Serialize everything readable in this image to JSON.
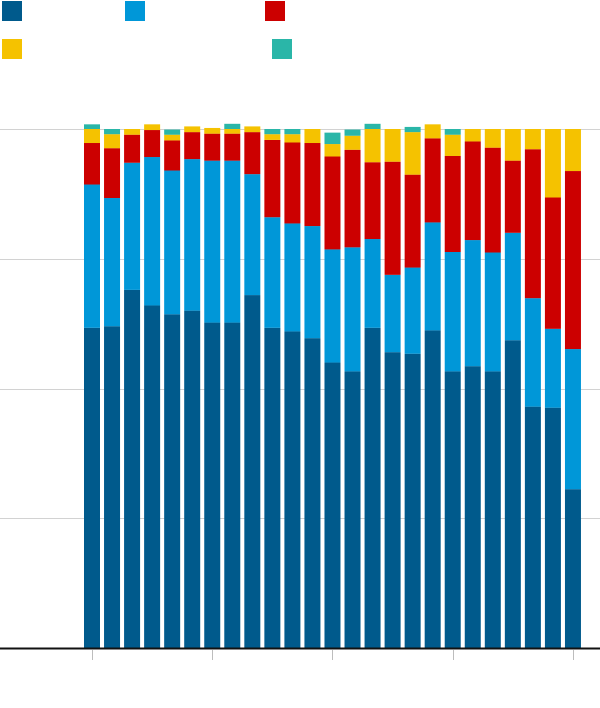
{
  "chart_data": {
    "type": "bar",
    "stacked": true,
    "normalized": true,
    "ylim": [
      0,
      100
    ],
    "y_gridlines": [
      25,
      50,
      75,
      100
    ],
    "x_tick_every": 6,
    "legend": {
      "placement": "top-left",
      "columns_row1": 3,
      "columns_row2": 2
    },
    "series": [
      {
        "color": "#005a8c",
        "values": [
          61.7,
          62,
          69,
          66,
          64.3,
          65,
          62.7,
          62.7,
          68,
          61.7,
          61,
          59.7,
          55,
          53.3,
          61.7,
          57,
          56.7,
          61.2,
          53.3,
          54.3,
          53.3,
          59.3,
          46.5,
          46.3,
          30.6
        ]
      },
      {
        "color": "#0097d8",
        "values": [
          27.6,
          24.7,
          24.5,
          28.6,
          27.7,
          29.2,
          31.2,
          31.2,
          23.3,
          21.3,
          20.8,
          21.6,
          21.8,
          23.9,
          17.1,
          14.9,
          16.6,
          20.8,
          23,
          24.3,
          22.9,
          20.7,
          20.9,
          15.2,
          27
        ]
      },
      {
        "color": "#cc0000",
        "values": [
          8,
          9.6,
          5.4,
          5.2,
          5.8,
          5.2,
          5.2,
          5.2,
          8.1,
          14.9,
          15.6,
          16,
          17.9,
          18.8,
          14.8,
          21.8,
          17.9,
          16.2,
          18.5,
          19,
          20.2,
          13.9,
          28.7,
          25.3,
          34.3
        ]
      },
      {
        "color": "#f5c200",
        "values": [
          2.7,
          2.7,
          1.1,
          1.1,
          1.1,
          1.1,
          1.1,
          0.9,
          1.1,
          1.1,
          1.6,
          2.7,
          2.4,
          2.7,
          6.4,
          6.3,
          8.2,
          2.7,
          4.1,
          2.4,
          3.6,
          6.1,
          3.9,
          13.2,
          8.1
        ]
      },
      {
        "color": "#2ab6a8",
        "values": [
          0.9,
          1,
          0,
          0,
          1,
          0,
          0,
          1,
          0,
          1,
          1,
          0,
          2.2,
          1.2,
          1,
          0,
          1,
          0,
          1.1,
          0,
          0,
          0,
          0,
          0,
          0
        ]
      }
    ]
  }
}
